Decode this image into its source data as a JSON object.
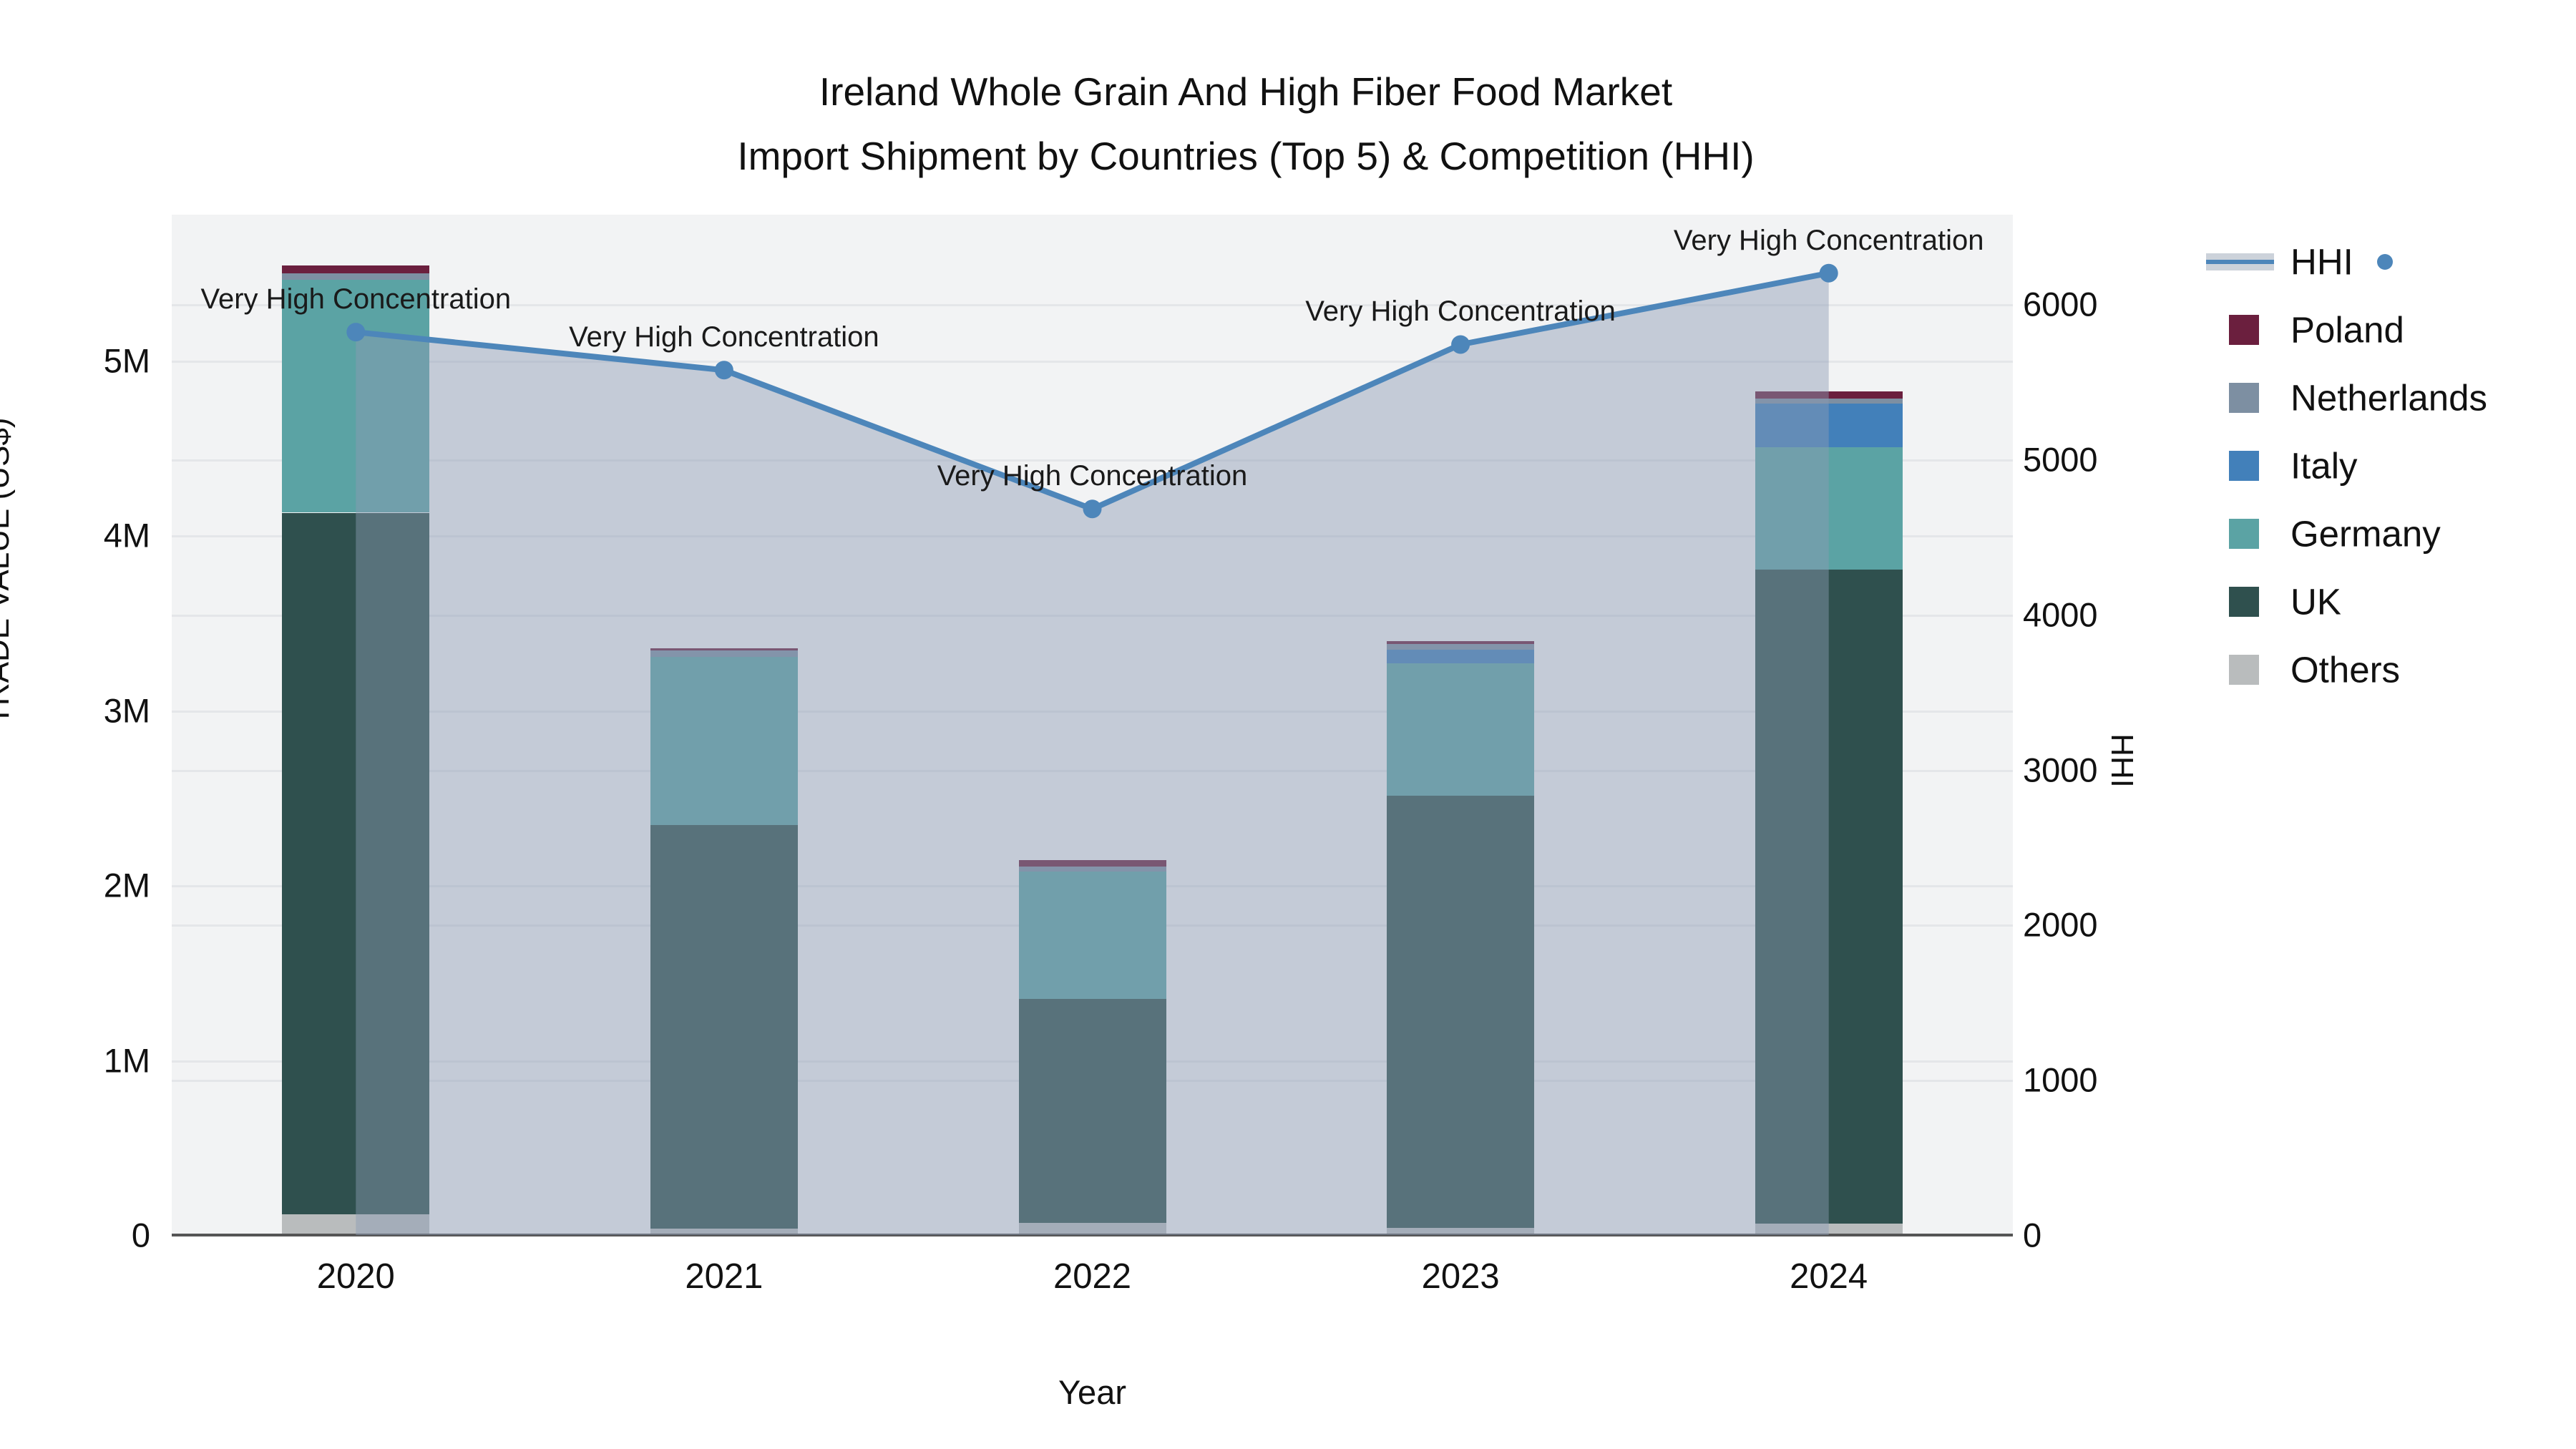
{
  "title": {
    "line1": "Ireland Whole Grain And High Fiber Food Market",
    "line2": "Import Shipment by Countries (Top 5) & Competition (HHI)"
  },
  "axes": {
    "left": {
      "title": "TRADE VALUE (US$)",
      "tick_labels": [
        "0",
        "1M",
        "2M",
        "3M",
        "4M",
        "5M"
      ],
      "tick_values": [
        0,
        1000000,
        2000000,
        3000000,
        4000000,
        5000000
      ],
      "max": 5834000
    },
    "right": {
      "title": "HHI",
      "tick_labels": [
        "0",
        "1000",
        "2000",
        "3000",
        "4000",
        "5000",
        "6000"
      ],
      "tick_values": [
        0,
        1000,
        2000,
        3000,
        4000,
        5000,
        6000
      ],
      "max": 6577
    },
    "x": {
      "title": "Year"
    }
  },
  "legend": {
    "items": [
      {
        "label": "HHI",
        "type": "line",
        "color": "#4d86ba"
      },
      {
        "label": "Poland",
        "type": "swatch",
        "color": "#6b1f3e"
      },
      {
        "label": "Netherlands",
        "type": "swatch",
        "color": "#7d8fa2"
      },
      {
        "label": "Italy",
        "type": "swatch",
        "color": "#4280ba"
      },
      {
        "label": "Germany",
        "type": "swatch",
        "color": "#5ba3a4"
      },
      {
        "label": "UK",
        "type": "swatch",
        "color": "#2f504e"
      },
      {
        "label": "Others",
        "type": "swatch",
        "color": "#b9bcbd"
      }
    ]
  },
  "annotation_label": "Very High Concentration",
  "chart_data": {
    "type": "bar",
    "subtype": "stacked-bars-with-line",
    "categories": [
      "2020",
      "2021",
      "2022",
      "2023",
      "2024"
    ],
    "series": [
      {
        "name": "Others",
        "color": "#b9bcbd",
        "yaxis": "left",
        "values": [
          120000,
          35000,
          70000,
          40000,
          65000
        ]
      },
      {
        "name": "UK",
        "color": "#2f504e",
        "yaxis": "left",
        "values": [
          4010000,
          2310000,
          1280000,
          2470000,
          3740000
        ]
      },
      {
        "name": "Germany",
        "color": "#5ba3a4",
        "yaxis": "left",
        "values": [
          1330000,
          960000,
          730000,
          760000,
          700000
        ]
      },
      {
        "name": "Italy",
        "color": "#4280ba",
        "yaxis": "left",
        "values": [
          0,
          0,
          0,
          78000,
          250000
        ]
      },
      {
        "name": "Netherlands",
        "color": "#7d8fa2",
        "yaxis": "left",
        "values": [
          37000,
          37000,
          25000,
          33000,
          29000
        ]
      },
      {
        "name": "Poland",
        "color": "#6b1f3e",
        "yaxis": "left",
        "values": [
          45000,
          13000,
          37000,
          16000,
          41000
        ]
      }
    ],
    "line_series": {
      "name": "HHI",
      "color": "#4d86ba",
      "area_fill": "rgba(140,155,180,0.45)",
      "yaxis": "right",
      "values": [
        5820,
        5575,
        4680,
        5740,
        6200
      ]
    },
    "annotations": [
      "Very High Concentration",
      "Very High Concentration",
      "Very High Concentration",
      "Very High Concentration",
      "Very High Concentration"
    ],
    "title": "Ireland Whole Grain And High Fiber Food Market Import Shipment by Countries (Top 5) & Competition (HHI)",
    "xlabel": "Year",
    "ylabel": "TRADE VALUE (US$)",
    "y2label": "HHI",
    "ylim": [
      0,
      5834000
    ],
    "y2lim": [
      0,
      6577
    ],
    "grid": true,
    "legend_position": "right"
  }
}
